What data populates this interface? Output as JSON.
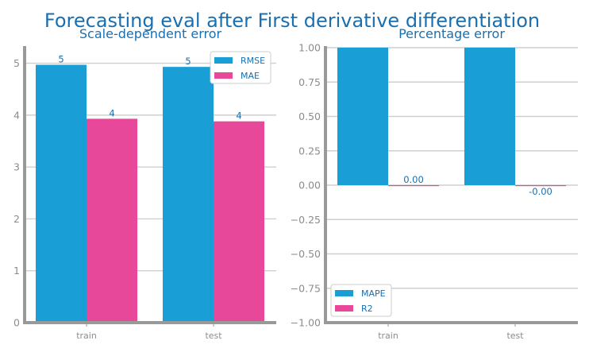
{
  "suptitle": "Forecasting eval after First derivative differentiation",
  "colors": {
    "primary": "#1a9ed6",
    "secondary": "#e8489a",
    "text": "#1a6fb0",
    "axis": "#999999",
    "grid": "#cfcfcf"
  },
  "chart_data": [
    {
      "type": "bar",
      "title": "Scale-dependent error",
      "categories": [
        "train",
        "test"
      ],
      "series": [
        {
          "name": "RMSE",
          "values": [
            4.97,
            4.93
          ],
          "labels": [
            "5",
            "5"
          ]
        },
        {
          "name": "MAE",
          "values": [
            3.93,
            3.88
          ],
          "labels": [
            "4",
            "4"
          ]
        }
      ],
      "ylim": [
        0,
        5.3
      ],
      "yticks": [
        0,
        1,
        2,
        3,
        4,
        5
      ],
      "ytick_labels": [
        "0",
        "1",
        "2",
        "3",
        "4",
        "5"
      ],
      "grid": true,
      "legend": "top-right"
    },
    {
      "type": "bar",
      "title": "Percentage error",
      "categories": [
        "train",
        "test"
      ],
      "series": [
        {
          "name": "MAPE",
          "values": [
            1.0,
            1.0
          ],
          "labels": [
            "",
            ""
          ]
        },
        {
          "name": "R2",
          "values": [
            0.0,
            -0.005
          ],
          "labels": [
            "0.00",
            "-0.00"
          ]
        }
      ],
      "ylim": [
        -1.0,
        1.0
      ],
      "yticks": [
        -1.0,
        -0.75,
        -0.5,
        -0.25,
        0.0,
        0.25,
        0.5,
        0.75,
        1.0
      ],
      "ytick_labels": [
        "−1.00",
        "−0.75",
        "−0.50",
        "−0.25",
        "0.00",
        "0.25",
        "0.50",
        "0.75",
        "1.00"
      ],
      "grid": true,
      "legend": "bottom-left"
    }
  ]
}
